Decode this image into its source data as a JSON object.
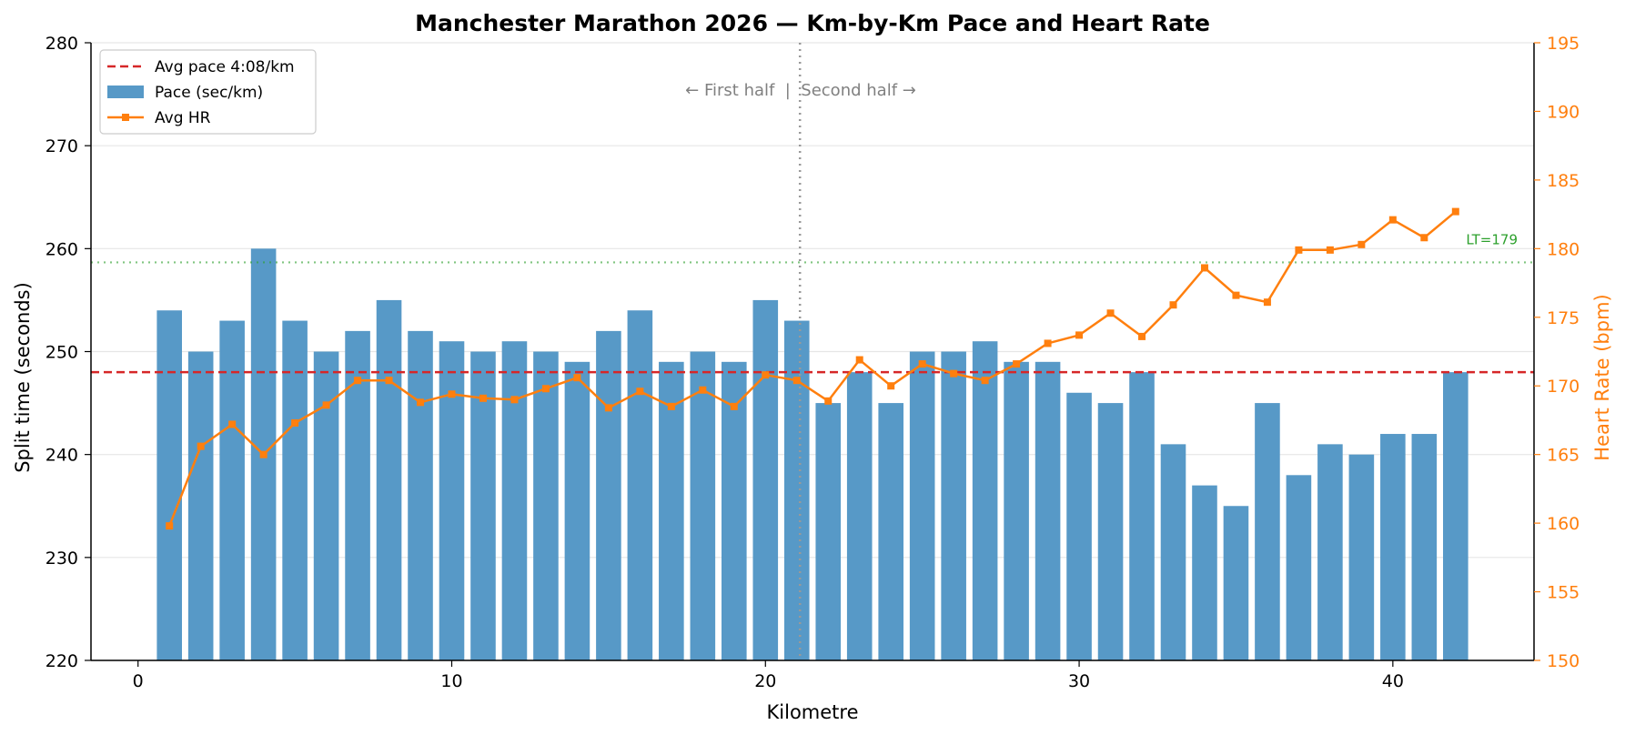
{
  "chart_data": {
    "type": "bar",
    "title": "Manchester Marathon 2026 — Km-by-Km Pace and Heart Rate",
    "xlabel": "Kilometre",
    "ylabel": "Split time (seconds)",
    "y2label": "Heart Rate (bpm)",
    "xlim": [
      -1.5,
      44.5
    ],
    "ylim": [
      220,
      280
    ],
    "y2lim": [
      150,
      195
    ],
    "xticks": [
      "0",
      "10",
      "20",
      "30",
      "40"
    ],
    "yticks": [
      "220",
      "230",
      "240",
      "250",
      "260",
      "270",
      "280"
    ],
    "y2ticks": [
      "150",
      "155",
      "160",
      "165",
      "170",
      "175",
      "180",
      "185",
      "190",
      "195"
    ],
    "grid": "horizontal",
    "legend_position": "top-left",
    "x": [
      1,
      2,
      3,
      4,
      5,
      6,
      7,
      8,
      9,
      10,
      11,
      12,
      13,
      14,
      15,
      16,
      17,
      18,
      19,
      20,
      21,
      22,
      23,
      24,
      25,
      26,
      27,
      28,
      29,
      30,
      31,
      32,
      33,
      34,
      35,
      36,
      37,
      38,
      39,
      40,
      41,
      42
    ],
    "series": [
      {
        "name": "Pace (sec/km)",
        "type": "bar",
        "axis": "left",
        "color": "#5799c7",
        "values": [
          254,
          250,
          253,
          260,
          253,
          250,
          252,
          255,
          252,
          251,
          250,
          251,
          250,
          249,
          252,
          254,
          249,
          250,
          249,
          255,
          253,
          245,
          248,
          245,
          250,
          250,
          251,
          249,
          249,
          246,
          245,
          248,
          241,
          237,
          235,
          245,
          238,
          241,
          240,
          242,
          242,
          248
        ]
      },
      {
        "name": "Avg HR",
        "type": "line",
        "axis": "right",
        "color": "#ff7f0e",
        "values": [
          159.8,
          165.6,
          167.2,
          165.0,
          167.3,
          168.6,
          170.4,
          170.4,
          168.8,
          169.4,
          169.1,
          169.0,
          169.8,
          170.6,
          168.4,
          169.6,
          168.5,
          169.7,
          168.5,
          170.8,
          170.4,
          168.9,
          171.9,
          170.0,
          171.6,
          170.9,
          170.4,
          171.6,
          173.1,
          173.7,
          175.3,
          173.6,
          175.9,
          178.6,
          176.6,
          176.1,
          179.9,
          179.9,
          180.3,
          182.1,
          180.8,
          182.7
        ]
      }
    ],
    "reference_lines": [
      {
        "name": "Avg pace 4:08/km",
        "axis": "left",
        "value": 248,
        "color": "#d62728",
        "style": "dashed"
      },
      {
        "label": "LT=179",
        "axis": "right",
        "value": 179,
        "color": "#2ca02c",
        "style": "dotted"
      }
    ],
    "vertical_marker": {
      "x": 21.1,
      "color": "#999999",
      "style": "dotted"
    },
    "annotation": "← First half  |  Second half →"
  }
}
